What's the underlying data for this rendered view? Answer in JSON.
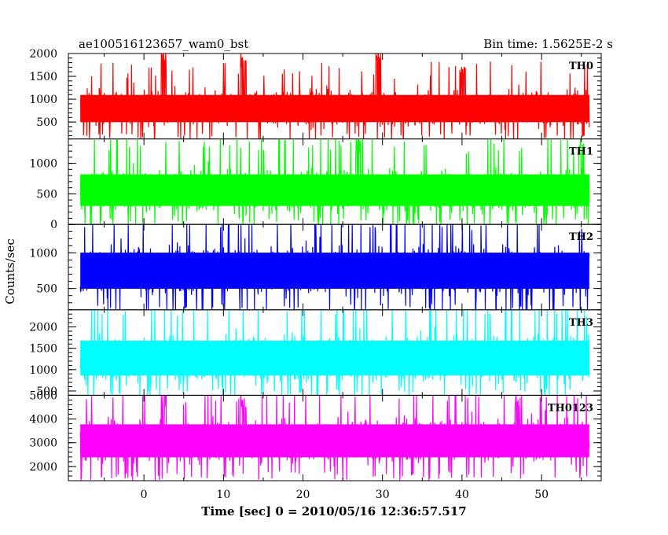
{
  "header": {
    "title": "ae100516123657_wam0_bst",
    "bin_time": "Bin time: 1.5625E-2 s"
  },
  "chart_data": {
    "type": "line",
    "ylabel": "Counts/sec",
    "xlabel": "Time [sec] 0 = 2010/05/16 12:36:57.517",
    "xlim": [
      -9.5,
      57.5
    ],
    "data_x_range": [
      -8,
      56
    ],
    "bin_time_s": 0.015625,
    "x_ticks": [
      0,
      10,
      20,
      30,
      40,
      50
    ],
    "x_tick_labels": [
      "0",
      "10",
      "20",
      "30",
      "40",
      "50"
    ],
    "panels": [
      {
        "name": "TH0",
        "color": "#ff0000",
        "ylim": [
          130,
          2000
        ],
        "y_ticks": [
          500,
          1000,
          1500,
          2000
        ],
        "y_tick_labels": [
          "500",
          "1000",
          "1500",
          "2000"
        ],
        "typical_mean": 800,
        "typical_low": 250,
        "typical_high": 1450,
        "peaks": [
          {
            "x": 2.5,
            "y": 2000
          },
          {
            "x": 12.5,
            "y": 2000
          },
          {
            "x": 29.5,
            "y": 2000
          },
          {
            "x": 40,
            "y": 1650
          }
        ]
      },
      {
        "name": "TH1",
        "color": "#00ff00",
        "ylim": [
          0,
          1400
        ],
        "y_ticks": [
          0,
          500,
          1000
        ],
        "y_tick_labels": [
          "0",
          "500",
          "1000"
        ],
        "typical_mean": 550,
        "typical_low": 100,
        "typical_high": 1150,
        "peaks": [
          {
            "x": 27,
            "y": 1400
          },
          {
            "x": 55,
            "y": 1400
          }
        ]
      },
      {
        "name": "TH2",
        "color": "#0000ff",
        "ylim": [
          200,
          1400
        ],
        "y_ticks": [
          500,
          1000
        ],
        "y_tick_labels": [
          "500",
          "1000"
        ],
        "typical_mean": 760,
        "typical_low": 280,
        "typical_high": 1300,
        "peaks": []
      },
      {
        "name": "TH3",
        "color": "#00ffff",
        "ylim": [
          400,
          2400
        ],
        "y_ticks": [
          500,
          1000,
          1500,
          2000
        ],
        "y_tick_labels": [
          "500",
          "1000",
          "1500",
          "2000"
        ],
        "typical_mean": 1250,
        "typical_low": 550,
        "typical_high": 2200,
        "peaks": []
      },
      {
        "name": "TH0123",
        "color": "#ff00ff",
        "ylim": [
          1400,
          5000
        ],
        "y_ticks": [
          2000,
          3000,
          4000,
          5000
        ],
        "y_tick_labels": [
          "2000",
          "3000",
          "4000",
          "5000"
        ],
        "typical_mean": 3100,
        "typical_low": 1800,
        "typical_high": 4600,
        "peaks": [
          {
            "x": 2.5,
            "y": 5000
          },
          {
            "x": 12.5,
            "y": 5000
          },
          {
            "x": 47,
            "y": 5000
          }
        ]
      }
    ]
  }
}
